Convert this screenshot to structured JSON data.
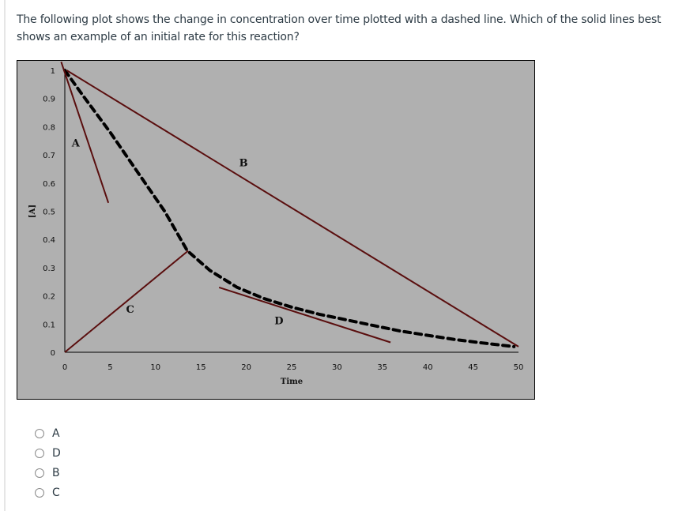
{
  "question": {
    "text": "The following plot shows the change in concentration over time plotted with a dashed line. Which of the solid lines best shows an example of an initial rate for this reaction?"
  },
  "chart_data": {
    "type": "line",
    "title": "",
    "xlabel": "Time",
    "ylabel": "[A]",
    "xlim": [
      0,
      50
    ],
    "ylim": [
      0,
      1
    ],
    "x_ticks": [
      "0",
      "5",
      "10",
      "15",
      "20",
      "25",
      "30",
      "35",
      "40",
      "45",
      "50"
    ],
    "y_ticks": [
      "0",
      "0.1",
      "0.2",
      "0.3",
      "0.4",
      "0.5",
      "0.6",
      "0.7",
      "0.8",
      "0.9",
      "1"
    ],
    "grid": false,
    "background": "#b0b0b0",
    "series": [
      {
        "name": "concentration",
        "style": "dashed",
        "color": "#000000",
        "x": [
          0,
          2,
          5,
          8,
          11,
          13.5,
          16,
          19,
          22,
          25,
          28,
          31,
          34,
          37,
          40,
          43,
          46,
          49.5
        ],
        "y": [
          1.0,
          0.91,
          0.78,
          0.64,
          0.5,
          0.36,
          0.29,
          0.23,
          0.19,
          0.16,
          0.135,
          0.115,
          0.095,
          0.075,
          0.06,
          0.045,
          0.033,
          0.02
        ]
      },
      {
        "name": "A",
        "style": "solid",
        "color": "#5a0e0e",
        "x": [
          -0.4,
          4.8
        ],
        "y": [
          1.03,
          0.53
        ]
      },
      {
        "name": "B",
        "style": "solid",
        "color": "#5a0e0e",
        "x": [
          0.2,
          50
        ],
        "y": [
          1.0,
          0.02
        ]
      },
      {
        "name": "C",
        "style": "solid",
        "color": "#5a0e0e",
        "x": [
          0,
          13.6
        ],
        "y": [
          0,
          0.36
        ]
      },
      {
        "name": "D",
        "style": "solid",
        "color": "#5a0e0e",
        "x": [
          17,
          35.9
        ],
        "y": [
          0.23,
          0.035
        ]
      }
    ],
    "annotations": [
      {
        "text": "A",
        "x": 1.2,
        "y": 0.73
      },
      {
        "text": "B",
        "x": 19.7,
        "y": 0.66
      },
      {
        "text": "C",
        "x": 7.2,
        "y": 0.14
      },
      {
        "text": "D",
        "x": 23.6,
        "y": 0.1
      }
    ]
  },
  "options": [
    {
      "label": "A"
    },
    {
      "label": "D"
    },
    {
      "label": "B"
    },
    {
      "label": "C"
    }
  ]
}
